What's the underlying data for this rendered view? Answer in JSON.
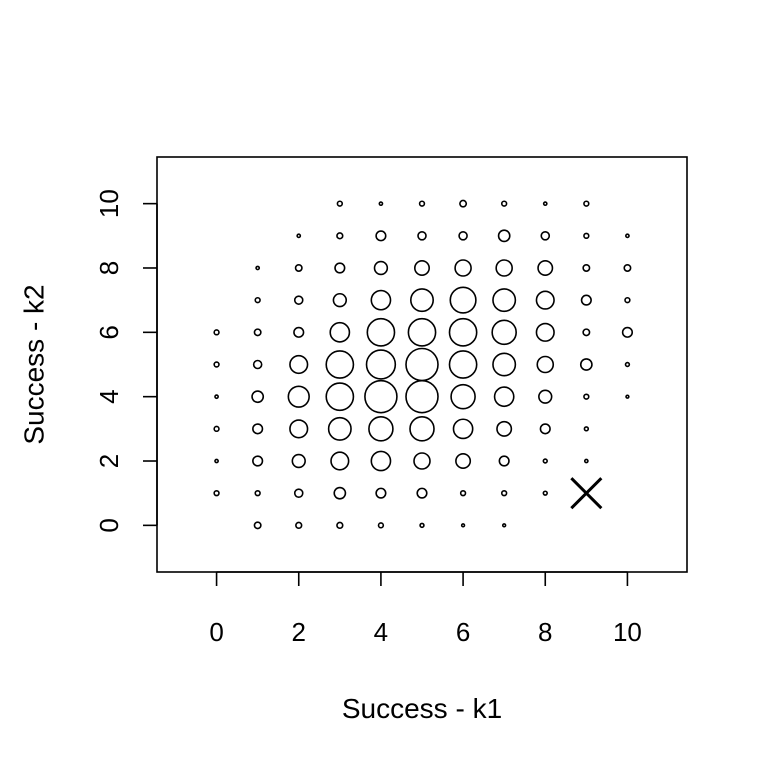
{
  "chart_data": {
    "type": "scatter",
    "title": "",
    "xlabel": "Success - k1",
    "ylabel": "Success - k2",
    "xlim": [
      -1.45,
      11.45
    ],
    "ylim": [
      -1.45,
      11.45
    ],
    "xticks": [
      0,
      2,
      4,
      6,
      8,
      10
    ],
    "yticks": [
      0,
      2,
      4,
      6,
      8,
      10
    ],
    "xtick_labels": [
      "0",
      "2",
      "4",
      "6",
      "8",
      "10"
    ],
    "ytick_labels": [
      "0",
      "2",
      "4",
      "6",
      "8",
      "10"
    ],
    "grid": false,
    "legend": "none",
    "point_style": "open circles sized by relative frequency",
    "points": [
      {
        "x": 0,
        "y": 1,
        "size": 0.15
      },
      {
        "x": 0,
        "y": 2,
        "size": 0.1
      },
      {
        "x": 0,
        "y": 3,
        "size": 0.15
      },
      {
        "x": 0,
        "y": 4,
        "size": 0.1
      },
      {
        "x": 0,
        "y": 5,
        "size": 0.15
      },
      {
        "x": 0,
        "y": 6,
        "size": 0.15
      },
      {
        "x": 1,
        "y": 0,
        "size": 0.2
      },
      {
        "x": 1,
        "y": 1,
        "size": 0.15
      },
      {
        "x": 1,
        "y": 2,
        "size": 0.3
      },
      {
        "x": 1,
        "y": 3,
        "size": 0.3
      },
      {
        "x": 1,
        "y": 4,
        "size": 0.35
      },
      {
        "x": 1,
        "y": 5,
        "size": 0.25
      },
      {
        "x": 1,
        "y": 6,
        "size": 0.2
      },
      {
        "x": 1,
        "y": 7,
        "size": 0.15
      },
      {
        "x": 1,
        "y": 8,
        "size": 0.1
      },
      {
        "x": 2,
        "y": 0,
        "size": 0.18
      },
      {
        "x": 2,
        "y": 1,
        "size": 0.25
      },
      {
        "x": 2,
        "y": 2,
        "size": 0.4
      },
      {
        "x": 2,
        "y": 3,
        "size": 0.55
      },
      {
        "x": 2,
        "y": 4,
        "size": 0.65
      },
      {
        "x": 2,
        "y": 5,
        "size": 0.55
      },
      {
        "x": 2,
        "y": 6,
        "size": 0.3
      },
      {
        "x": 2,
        "y": 7,
        "size": 0.25
      },
      {
        "x": 2,
        "y": 8,
        "size": 0.2
      },
      {
        "x": 2,
        "y": 9,
        "size": 0.1
      },
      {
        "x": 3,
        "y": 0,
        "size": 0.18
      },
      {
        "x": 3,
        "y": 1,
        "size": 0.35
      },
      {
        "x": 3,
        "y": 2,
        "size": 0.55
      },
      {
        "x": 3,
        "y": 3,
        "size": 0.7
      },
      {
        "x": 3,
        "y": 4,
        "size": 0.85
      },
      {
        "x": 3,
        "y": 5,
        "size": 0.85
      },
      {
        "x": 3,
        "y": 6,
        "size": 0.6
      },
      {
        "x": 3,
        "y": 7,
        "size": 0.4
      },
      {
        "x": 3,
        "y": 8,
        "size": 0.3
      },
      {
        "x": 3,
        "y": 9,
        "size": 0.18
      },
      {
        "x": 3,
        "y": 10,
        "size": 0.15
      },
      {
        "x": 4,
        "y": 0,
        "size": 0.15
      },
      {
        "x": 4,
        "y": 1,
        "size": 0.3
      },
      {
        "x": 4,
        "y": 2,
        "size": 0.6
      },
      {
        "x": 4,
        "y": 3,
        "size": 0.75
      },
      {
        "x": 4,
        "y": 4,
        "size": 1.0
      },
      {
        "x": 4,
        "y": 5,
        "size": 0.9
      },
      {
        "x": 4,
        "y": 6,
        "size": 0.85
      },
      {
        "x": 4,
        "y": 7,
        "size": 0.6
      },
      {
        "x": 4,
        "y": 8,
        "size": 0.4
      },
      {
        "x": 4,
        "y": 9,
        "size": 0.3
      },
      {
        "x": 4,
        "y": 10,
        "size": 0.1
      },
      {
        "x": 5,
        "y": 0,
        "size": 0.12
      },
      {
        "x": 5,
        "y": 1,
        "size": 0.3
      },
      {
        "x": 5,
        "y": 2,
        "size": 0.5
      },
      {
        "x": 5,
        "y": 3,
        "size": 0.75
      },
      {
        "x": 5,
        "y": 4,
        "size": 1.0
      },
      {
        "x": 5,
        "y": 5,
        "size": 1.0
      },
      {
        "x": 5,
        "y": 6,
        "size": 0.85
      },
      {
        "x": 5,
        "y": 7,
        "size": 0.7
      },
      {
        "x": 5,
        "y": 8,
        "size": 0.45
      },
      {
        "x": 5,
        "y": 9,
        "size": 0.25
      },
      {
        "x": 5,
        "y": 10,
        "size": 0.15
      },
      {
        "x": 6,
        "y": 0,
        "size": 0.08
      },
      {
        "x": 6,
        "y": 1,
        "size": 0.15
      },
      {
        "x": 6,
        "y": 2,
        "size": 0.45
      },
      {
        "x": 6,
        "y": 3,
        "size": 0.6
      },
      {
        "x": 6,
        "y": 4,
        "size": 0.75
      },
      {
        "x": 6,
        "y": 5,
        "size": 0.85
      },
      {
        "x": 6,
        "y": 6,
        "size": 0.85
      },
      {
        "x": 6,
        "y": 7,
        "size": 0.8
      },
      {
        "x": 6,
        "y": 8,
        "size": 0.5
      },
      {
        "x": 6,
        "y": 9,
        "size": 0.25
      },
      {
        "x": 6,
        "y": 10,
        "size": 0.2
      },
      {
        "x": 7,
        "y": 0,
        "size": 0.08
      },
      {
        "x": 7,
        "y": 1,
        "size": 0.15
      },
      {
        "x": 7,
        "y": 2,
        "size": 0.3
      },
      {
        "x": 7,
        "y": 3,
        "size": 0.45
      },
      {
        "x": 7,
        "y": 4,
        "size": 0.6
      },
      {
        "x": 7,
        "y": 5,
        "size": 0.7
      },
      {
        "x": 7,
        "y": 6,
        "size": 0.75
      },
      {
        "x": 7,
        "y": 7,
        "size": 0.7
      },
      {
        "x": 7,
        "y": 8,
        "size": 0.5
      },
      {
        "x": 7,
        "y": 9,
        "size": 0.35
      },
      {
        "x": 7,
        "y": 10,
        "size": 0.15
      },
      {
        "x": 8,
        "y": 1,
        "size": 0.12
      },
      {
        "x": 8,
        "y": 2,
        "size": 0.12
      },
      {
        "x": 8,
        "y": 3,
        "size": 0.3
      },
      {
        "x": 8,
        "y": 4,
        "size": 0.4
      },
      {
        "x": 8,
        "y": 5,
        "size": 0.5
      },
      {
        "x": 8,
        "y": 6,
        "size": 0.55
      },
      {
        "x": 8,
        "y": 7,
        "size": 0.55
      },
      {
        "x": 8,
        "y": 8,
        "size": 0.45
      },
      {
        "x": 8,
        "y": 9,
        "size": 0.25
      },
      {
        "x": 8,
        "y": 10,
        "size": 0.1
      },
      {
        "x": 9,
        "y": 2,
        "size": 0.1
      },
      {
        "x": 9,
        "y": 3,
        "size": 0.12
      },
      {
        "x": 9,
        "y": 4,
        "size": 0.15
      },
      {
        "x": 9,
        "y": 5,
        "size": 0.35
      },
      {
        "x": 9,
        "y": 6,
        "size": 0.2
      },
      {
        "x": 9,
        "y": 7,
        "size": 0.3
      },
      {
        "x": 9,
        "y": 8,
        "size": 0.2
      },
      {
        "x": 9,
        "y": 9,
        "size": 0.15
      },
      {
        "x": 9,
        "y": 10,
        "size": 0.15
      },
      {
        "x": 10,
        "y": 4,
        "size": 0.08
      },
      {
        "x": 10,
        "y": 5,
        "size": 0.12
      },
      {
        "x": 10,
        "y": 6,
        "size": 0.3
      },
      {
        "x": 10,
        "y": 7,
        "size": 0.15
      },
      {
        "x": 10,
        "y": 8,
        "size": 0.2
      },
      {
        "x": 10,
        "y": 9,
        "size": 0.1
      }
    ],
    "marker": {
      "x": 9,
      "y": 1,
      "shape": "cross"
    }
  }
}
